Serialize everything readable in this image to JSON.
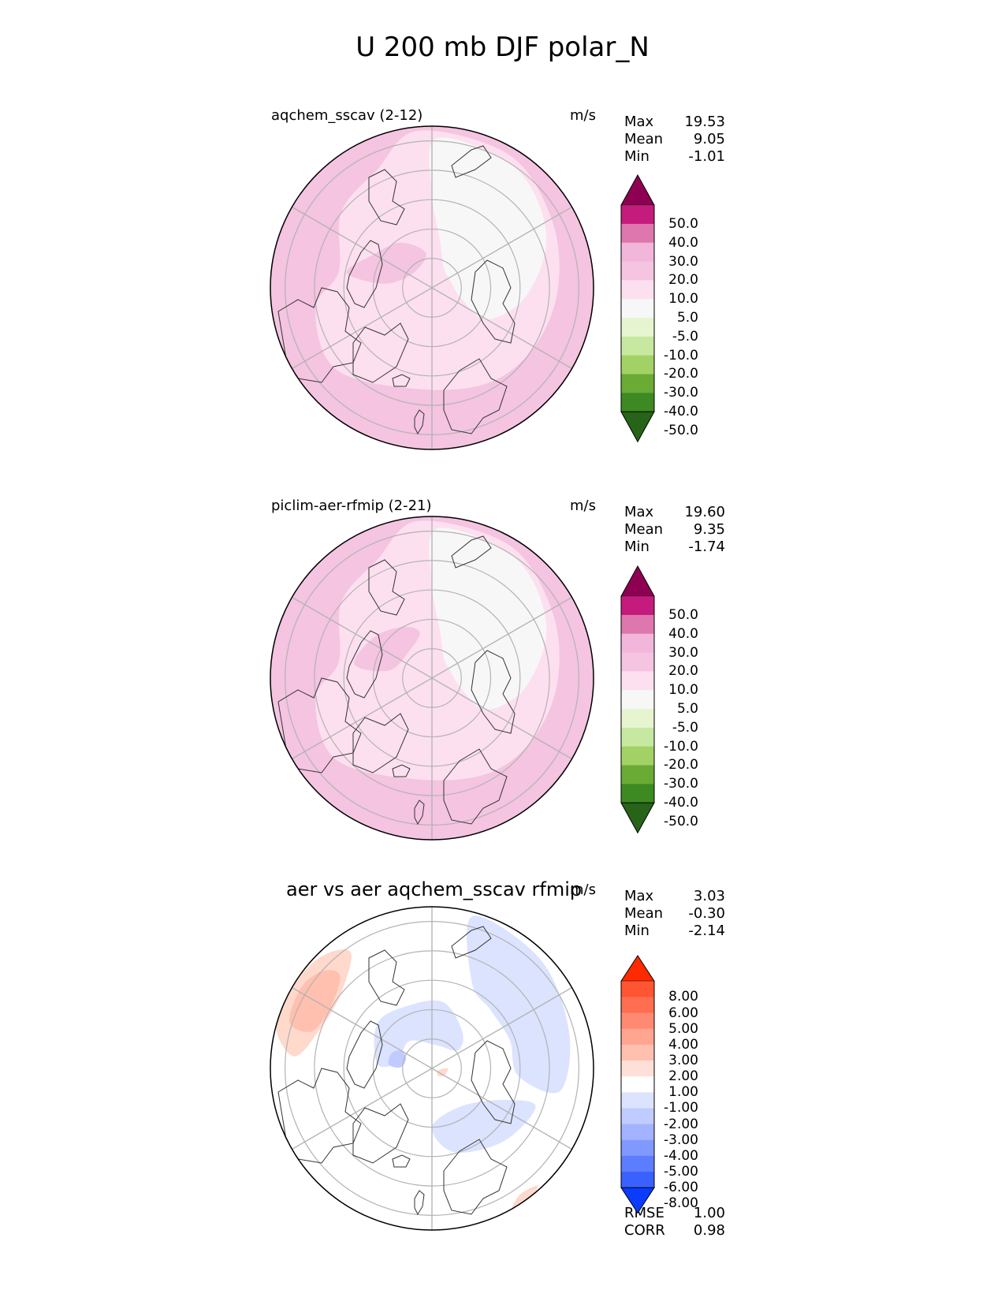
{
  "figure": {
    "title": "U 200 mb DJF polar_N"
  },
  "panels": [
    {
      "id": "test",
      "label": "aqchem_sscav (2-12)",
      "units": "m/s",
      "stats": [
        {
          "name": "Max",
          "value": "19.53"
        },
        {
          "name": "Mean",
          "value": "9.05"
        },
        {
          "name": "Min",
          "value": "-1.01"
        }
      ],
      "colorbar": {
        "labels": [
          "50.0",
          "40.0",
          "30.0",
          "20.0",
          "10.0",
          "5.0",
          "-5.0",
          "-10.0",
          "-20.0",
          "-30.0",
          "-40.0",
          "-50.0"
        ],
        "colors": [
          "#8e0152",
          "#c51b7d",
          "#de77ae",
          "#f1b6da",
          "#f4c4e1",
          "#fde0ef",
          "#f7f7f7",
          "#e6f5d0",
          "#c7e8a0",
          "#a2d265",
          "#6aab35",
          "#3d8a23",
          "#276419"
        ]
      }
    },
    {
      "id": "reference",
      "label": "piclim-aer-rfmip (2-21)",
      "units": "m/s",
      "stats": [
        {
          "name": "Max",
          "value": "19.60"
        },
        {
          "name": "Mean",
          "value": "9.35"
        },
        {
          "name": "Min",
          "value": "-1.74"
        }
      ],
      "colorbar": {
        "labels": [
          "50.0",
          "40.0",
          "30.0",
          "20.0",
          "10.0",
          "5.0",
          "-5.0",
          "-10.0",
          "-20.0",
          "-30.0",
          "-40.0",
          "-50.0"
        ],
        "colors": [
          "#8e0152",
          "#c51b7d",
          "#de77ae",
          "#f1b6da",
          "#f4c4e1",
          "#fde0ef",
          "#f7f7f7",
          "#e6f5d0",
          "#c7e8a0",
          "#a2d265",
          "#6aab35",
          "#3d8a23",
          "#276419"
        ]
      }
    },
    {
      "id": "difference",
      "label": "aer vs aer aqchem_sscav rfmip",
      "units": "m/s",
      "stats": [
        {
          "name": "Max",
          "value": "3.03"
        },
        {
          "name": "Mean",
          "value": "-0.30"
        },
        {
          "name": "Min",
          "value": "-2.14"
        }
      ],
      "extra_stats": [
        {
          "name": "RMSE",
          "value": "1.00"
        },
        {
          "name": "CORR",
          "value": "0.98"
        }
      ],
      "colorbar": {
        "labels": [
          "8.00",
          "6.00",
          "5.00",
          "4.00",
          "3.00",
          "2.00",
          "1.00",
          "-1.00",
          "-2.00",
          "-3.00",
          "-4.00",
          "-5.00",
          "-6.00",
          "-8.00"
        ],
        "colors": [
          "#ff2a00",
          "#ff5533",
          "#ff6e50",
          "#ff8a73",
          "#ffa590",
          "#ffc0b0",
          "#ffe0d8",
          "#ffffff",
          "#dbe3ff",
          "#c0ccff",
          "#a3b3ff",
          "#8099ff",
          "#5c7dff",
          "#3a60ff",
          "#0a3cff"
        ]
      }
    }
  ],
  "map_colors": {
    "land_outline": "#333333",
    "grid": "#b3b3b3",
    "circle_border": "#000000",
    "pink_outer": "#f4c4e1",
    "pink_light": "#fde0ef",
    "neutral": "#f7f7f7",
    "blue_light": "#dbe3ff",
    "blue_mid": "#c0ccff",
    "red_light": "#ffd9cc",
    "red_mid": "#ffc0b0"
  }
}
